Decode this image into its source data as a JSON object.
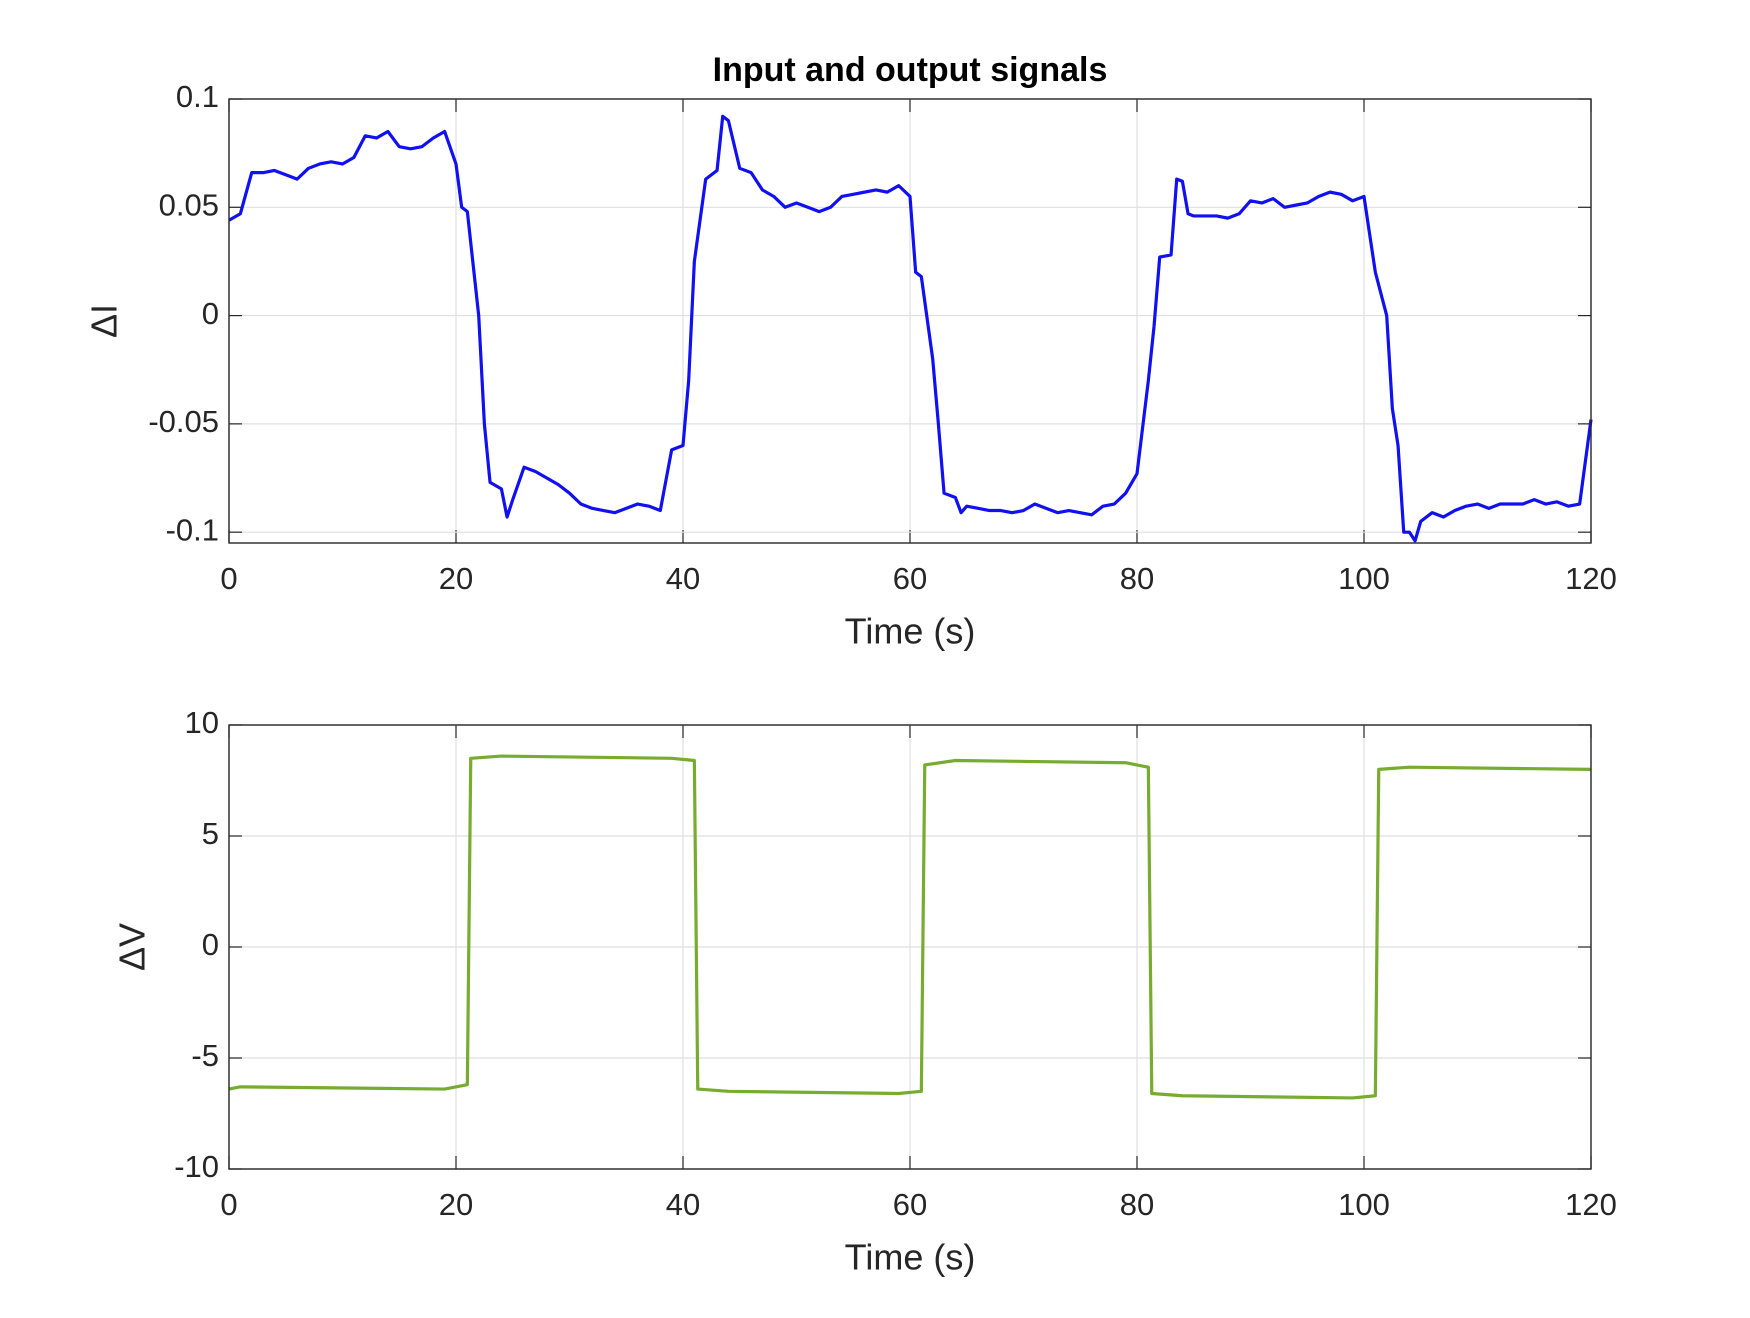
{
  "chart_data": [
    {
      "type": "line",
      "title": "Input and output signals",
      "xlabel": "Time (s)",
      "ylabel": "ΔI",
      "color": "#1010f0",
      "grid": true,
      "xlim": [
        0,
        120
      ],
      "xticks": [
        0,
        20,
        40,
        60,
        80,
        100,
        120
      ],
      "ylim": [
        -0.105,
        0.1
      ],
      "yticks": [
        -0.1,
        -0.05,
        0,
        0.05,
        0.1
      ],
      "x": [
        0,
        1,
        2,
        3,
        4,
        5,
        6,
        7,
        8,
        9,
        10,
        11,
        12,
        13,
        14,
        15,
        16,
        17,
        18,
        19,
        20,
        20.5,
        21,
        22,
        22.5,
        23,
        24,
        24.5,
        25,
        26,
        27,
        28,
        29,
        30,
        31,
        32,
        33,
        34,
        35,
        36,
        37,
        38,
        39,
        40,
        40.5,
        41,
        42,
        43,
        43.5,
        44,
        45,
        46,
        47,
        48,
        49,
        50,
        51,
        52,
        53,
        54,
        55,
        56,
        57,
        58,
        59,
        60,
        60.5,
        61,
        62,
        62.5,
        63,
        64,
        64.5,
        65,
        66,
        67,
        68,
        69,
        70,
        71,
        72,
        73,
        74,
        75,
        76,
        77,
        78,
        79,
        80,
        81,
        81.5,
        82,
        83,
        83.5,
        84,
        84.5,
        85,
        86,
        87,
        88,
        89,
        90,
        91,
        92,
        93,
        94,
        95,
        96,
        97,
        98,
        99,
        100,
        101,
        102,
        102.5,
        103,
        103.5,
        104,
        104.5,
        105,
        106,
        107,
        108,
        109,
        110,
        111,
        112,
        113,
        114,
        115,
        116,
        117,
        118,
        119,
        120
      ],
      "values": [
        0.044,
        0.047,
        0.066,
        0.066,
        0.067,
        0.065,
        0.063,
        0.068,
        0.07,
        0.071,
        0.07,
        0.073,
        0.083,
        0.082,
        0.085,
        0.078,
        0.077,
        0.078,
        0.082,
        0.085,
        0.07,
        0.05,
        0.048,
        0.0,
        -0.05,
        -0.077,
        -0.08,
        -0.093,
        -0.085,
        -0.07,
        -0.072,
        -0.075,
        -0.078,
        -0.082,
        -0.087,
        -0.089,
        -0.09,
        -0.091,
        -0.089,
        -0.087,
        -0.088,
        -0.09,
        -0.062,
        -0.06,
        -0.03,
        0.025,
        0.063,
        0.067,
        0.092,
        0.09,
        0.068,
        0.066,
        0.058,
        0.055,
        0.05,
        0.052,
        0.05,
        0.048,
        0.05,
        0.055,
        0.056,
        0.057,
        0.058,
        0.057,
        0.06,
        0.055,
        0.02,
        0.018,
        -0.02,
        -0.05,
        -0.082,
        -0.084,
        -0.091,
        -0.088,
        -0.089,
        -0.09,
        -0.09,
        -0.091,
        -0.09,
        -0.087,
        -0.089,
        -0.091,
        -0.09,
        -0.091,
        -0.092,
        -0.088,
        -0.087,
        -0.082,
        -0.073,
        -0.03,
        -0.005,
        0.027,
        0.028,
        0.063,
        0.062,
        0.047,
        0.046,
        0.046,
        0.046,
        0.045,
        0.047,
        0.053,
        0.052,
        0.054,
        0.05,
        0.051,
        0.052,
        0.055,
        0.057,
        0.056,
        0.053,
        0.055,
        0.02,
        0.0,
        -0.043,
        -0.06,
        -0.1,
        -0.1,
        -0.104,
        -0.095,
        -0.091,
        -0.093,
        -0.09,
        -0.088,
        -0.087,
        -0.089,
        -0.087,
        -0.087,
        -0.087,
        -0.085,
        -0.087,
        -0.086,
        -0.088,
        -0.087,
        -0.048
      ]
    },
    {
      "type": "line",
      "xlabel": "Time (s)",
      "ylabel": "ΔV",
      "color": "#77ac30",
      "grid": true,
      "xlim": [
        0,
        120
      ],
      "xticks": [
        0,
        20,
        40,
        60,
        80,
        100,
        120
      ],
      "ylim": [
        -10,
        10
      ],
      "yticks": [
        -10,
        -5,
        0,
        5,
        10
      ],
      "x": [
        0,
        1,
        19,
        21,
        21.3,
        24,
        39,
        41,
        41.3,
        44,
        59,
        61,
        61.3,
        64,
        79,
        81,
        81.3,
        84,
        99,
        101,
        101.3,
        104,
        120
      ],
      "values": [
        -6.4,
        -6.3,
        -6.4,
        -6.2,
        8.5,
        8.6,
        8.5,
        8.4,
        -6.4,
        -6.5,
        -6.6,
        -6.5,
        8.2,
        8.4,
        8.3,
        8.1,
        -6.6,
        -6.7,
        -6.8,
        -6.7,
        8.0,
        8.1,
        8.0
      ]
    }
  ]
}
